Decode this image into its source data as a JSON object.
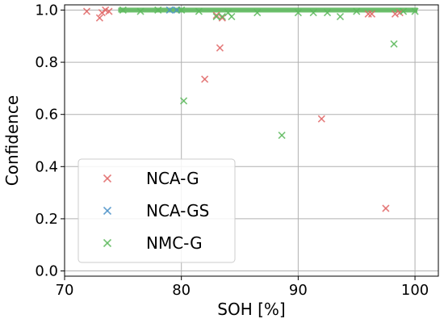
{
  "chart_data": {
    "type": "scatter",
    "title": "",
    "xlabel": "SOH [%]",
    "ylabel": "Confidence",
    "xlim": [
      70,
      102
    ],
    "ylim": [
      -0.02,
      1.02
    ],
    "xticks": [
      70,
      80,
      90,
      100
    ],
    "yticks": [
      0.0,
      0.2,
      0.4,
      0.6,
      0.8,
      1.0
    ],
    "xtick_labels": [
      "70",
      "80",
      "90",
      "100"
    ],
    "ytick_labels": [
      "0.0",
      "0.2",
      "0.4",
      "0.6",
      "0.8",
      "1.0"
    ],
    "grid": true,
    "legend_position": "lower-left",
    "series": [
      {
        "name": "NCA-G",
        "color": "#e06666",
        "marker": "x",
        "points": [
          [
            71.9,
            0.995
          ],
          [
            73.0,
            0.97
          ],
          [
            73.2,
            0.99
          ],
          [
            73.5,
            1.0
          ],
          [
            73.8,
            0.995
          ],
          [
            82.0,
            0.735
          ],
          [
            83.0,
            0.98
          ],
          [
            83.3,
            0.855
          ],
          [
            83.5,
            0.97
          ],
          [
            92.0,
            0.583
          ],
          [
            96.0,
            0.985
          ],
          [
            96.3,
            0.985
          ],
          [
            97.5,
            0.24
          ],
          [
            98.3,
            0.985
          ],
          [
            98.7,
            0.99
          ]
        ]
      },
      {
        "name": "NCA-GS",
        "color": "#4a90c8",
        "marker": "x",
        "points": [
          [
            79.0,
            1.0
          ],
          [
            79.6,
            1.0
          ]
        ]
      },
      {
        "name": "NMC-G",
        "color": "#5cb85c",
        "marker": "x",
        "points": [
          [
            75.0,
            1.0
          ],
          [
            76.5,
            0.995
          ],
          [
            78.0,
            1.0
          ],
          [
            80.0,
            1.0
          ],
          [
            80.2,
            0.652
          ],
          [
            81.5,
            0.995
          ],
          [
            83.0,
            0.975
          ],
          [
            83.5,
            0.975
          ],
          [
            84.0,
            0.99
          ],
          [
            84.3,
            0.975
          ],
          [
            86.5,
            0.99
          ],
          [
            88.6,
            0.52
          ],
          [
            90.0,
            0.99
          ],
          [
            91.3,
            0.99
          ],
          [
            92.5,
            0.99
          ],
          [
            93.6,
            0.975
          ],
          [
            95.0,
            0.995
          ],
          [
            98.2,
            0.87
          ],
          [
            99.0,
            0.995
          ],
          [
            100.0,
            0.995
          ]
        ]
      }
    ],
    "dense_band": {
      "series": "NMC-G",
      "x_from": 74.8,
      "x_to": 100.0,
      "y": 1.0
    }
  }
}
